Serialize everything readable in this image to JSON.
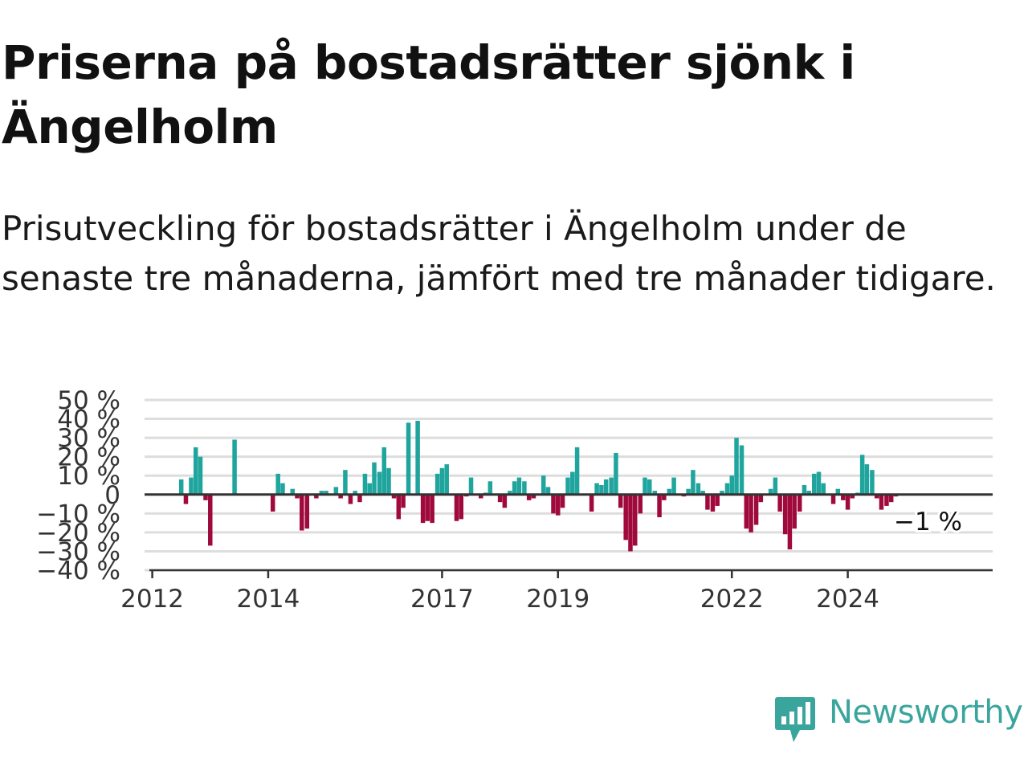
{
  "header": {
    "title": "Priserna på bostadsrätter sjönk i Ängelholm",
    "subtitle": "Prisutveckling för bostadsrätter i Ängelholm under de senaste tre månaderna, jämfört med tre månader tidigare."
  },
  "brand": {
    "name": "Newsworthy",
    "icon": "newsworthy-logo-icon",
    "color": "#3aa59c"
  },
  "chart_data": {
    "type": "bar",
    "title": "",
    "xlabel": "",
    "ylabel": "",
    "ylim": [
      -40,
      50
    ],
    "xlim": [
      2011.95,
      2026.5
    ],
    "grid": true,
    "legend": "none",
    "colors": {
      "positive": "#1fa59e",
      "negative": "#a0093c",
      "zero_line": "#333333",
      "grid": "#dddddd"
    },
    "y_ticks": [
      {
        "value": 50,
        "label": "50 %"
      },
      {
        "value": 40,
        "label": "40 %"
      },
      {
        "value": 30,
        "label": "30 %"
      },
      {
        "value": 20,
        "label": "20 %"
      },
      {
        "value": 10,
        "label": "10 %"
      },
      {
        "value": 0,
        "label": "0"
      },
      {
        "value": -10,
        "label": "−10 %"
      },
      {
        "value": -20,
        "label": "−20 %"
      },
      {
        "value": -30,
        "label": "−30 %"
      },
      {
        "value": -40,
        "label": "−40 %"
      }
    ],
    "x_ticks": [
      {
        "value": 2012,
        "label": "2012"
      },
      {
        "value": 2014,
        "label": "2014"
      },
      {
        "value": 2017,
        "label": "2017"
      },
      {
        "value": 2019,
        "label": "2019"
      },
      {
        "value": 2022,
        "label": "2022"
      },
      {
        "value": 2024,
        "label": "2024"
      }
    ],
    "annotation": {
      "text": "−1 %",
      "value": -1
    },
    "series": [
      {
        "points": [
          {
            "x": 2012.5,
            "y": 8
          },
          {
            "x": 2012.58,
            "y": -5
          },
          {
            "x": 2012.67,
            "y": 9
          },
          {
            "x": 2012.75,
            "y": 25
          },
          {
            "x": 2012.83,
            "y": 20
          },
          {
            "x": 2012.92,
            "y": -3
          },
          {
            "x": 2013.0,
            "y": -27
          },
          {
            "x": 2013.42,
            "y": 29
          },
          {
            "x": 2014.08,
            "y": -9
          },
          {
            "x": 2014.17,
            "y": 11
          },
          {
            "x": 2014.25,
            "y": 6
          },
          {
            "x": 2014.42,
            "y": 3
          },
          {
            "x": 2014.5,
            "y": -2
          },
          {
            "x": 2014.58,
            "y": -19
          },
          {
            "x": 2014.67,
            "y": -18
          },
          {
            "x": 2014.83,
            "y": -2
          },
          {
            "x": 2014.92,
            "y": 2
          },
          {
            "x": 2015.0,
            "y": 2
          },
          {
            "x": 2015.17,
            "y": 4
          },
          {
            "x": 2015.25,
            "y": -2
          },
          {
            "x": 2015.33,
            "y": 13
          },
          {
            "x": 2015.42,
            "y": -5
          },
          {
            "x": 2015.5,
            "y": 2
          },
          {
            "x": 2015.58,
            "y": -4
          },
          {
            "x": 2015.67,
            "y": 11
          },
          {
            "x": 2015.75,
            "y": 6
          },
          {
            "x": 2015.83,
            "y": 17
          },
          {
            "x": 2015.92,
            "y": 12
          },
          {
            "x": 2016.0,
            "y": 25
          },
          {
            "x": 2016.08,
            "y": 14
          },
          {
            "x": 2016.17,
            "y": -2
          },
          {
            "x": 2016.25,
            "y": -13
          },
          {
            "x": 2016.33,
            "y": -7
          },
          {
            "x": 2016.42,
            "y": 38
          },
          {
            "x": 2016.58,
            "y": 39
          },
          {
            "x": 2016.67,
            "y": -15
          },
          {
            "x": 2016.75,
            "y": -14
          },
          {
            "x": 2016.83,
            "y": -15
          },
          {
            "x": 2016.92,
            "y": 11
          },
          {
            "x": 2017.0,
            "y": 14
          },
          {
            "x": 2017.08,
            "y": 16
          },
          {
            "x": 2017.25,
            "y": -14
          },
          {
            "x": 2017.33,
            "y": -13
          },
          {
            "x": 2017.42,
            "y": -1
          },
          {
            "x": 2017.5,
            "y": 9
          },
          {
            "x": 2017.67,
            "y": -2
          },
          {
            "x": 2017.75,
            "y": 1
          },
          {
            "x": 2017.83,
            "y": 7
          },
          {
            "x": 2018.0,
            "y": -4
          },
          {
            "x": 2018.08,
            "y": -7
          },
          {
            "x": 2018.17,
            "y": 2
          },
          {
            "x": 2018.25,
            "y": 7
          },
          {
            "x": 2018.33,
            "y": 9
          },
          {
            "x": 2018.42,
            "y": 7
          },
          {
            "x": 2018.5,
            "y": -3
          },
          {
            "x": 2018.58,
            "y": -2
          },
          {
            "x": 2018.75,
            "y": 10
          },
          {
            "x": 2018.83,
            "y": 4
          },
          {
            "x": 2018.92,
            "y": -10
          },
          {
            "x": 2019.0,
            "y": -11
          },
          {
            "x": 2019.08,
            "y": -7
          },
          {
            "x": 2019.17,
            "y": 9
          },
          {
            "x": 2019.25,
            "y": 12
          },
          {
            "x": 2019.33,
            "y": 25
          },
          {
            "x": 2019.58,
            "y": -9
          },
          {
            "x": 2019.67,
            "y": 6
          },
          {
            "x": 2019.75,
            "y": 5
          },
          {
            "x": 2019.83,
            "y": 8
          },
          {
            "x": 2019.92,
            "y": 9
          },
          {
            "x": 2020.0,
            "y": 22
          },
          {
            "x": 2020.08,
            "y": -7
          },
          {
            "x": 2020.17,
            "y": -24
          },
          {
            "x": 2020.25,
            "y": -30
          },
          {
            "x": 2020.33,
            "y": -27
          },
          {
            "x": 2020.42,
            "y": -10
          },
          {
            "x": 2020.5,
            "y": 9
          },
          {
            "x": 2020.58,
            "y": 8
          },
          {
            "x": 2020.67,
            "y": 2
          },
          {
            "x": 2020.75,
            "y": -12
          },
          {
            "x": 2020.83,
            "y": -3
          },
          {
            "x": 2020.92,
            "y": 3
          },
          {
            "x": 2021.0,
            "y": 9
          },
          {
            "x": 2021.17,
            "y": -1
          },
          {
            "x": 2021.25,
            "y": 3
          },
          {
            "x": 2021.33,
            "y": 13
          },
          {
            "x": 2021.42,
            "y": 6
          },
          {
            "x": 2021.5,
            "y": 2
          },
          {
            "x": 2021.58,
            "y": -8
          },
          {
            "x": 2021.67,
            "y": -9
          },
          {
            "x": 2021.75,
            "y": -6
          },
          {
            "x": 2021.83,
            "y": 2
          },
          {
            "x": 2021.92,
            "y": 6
          },
          {
            "x": 2022.0,
            "y": 10
          },
          {
            "x": 2022.08,
            "y": 30
          },
          {
            "x": 2022.17,
            "y": 26
          },
          {
            "x": 2022.25,
            "y": -18
          },
          {
            "x": 2022.33,
            "y": -20
          },
          {
            "x": 2022.42,
            "y": -16
          },
          {
            "x": 2022.5,
            "y": -4
          },
          {
            "x": 2022.67,
            "y": 3
          },
          {
            "x": 2022.75,
            "y": 9
          },
          {
            "x": 2022.83,
            "y": -9
          },
          {
            "x": 2022.92,
            "y": -21
          },
          {
            "x": 2023.0,
            "y": -29
          },
          {
            "x": 2023.08,
            "y": -18
          },
          {
            "x": 2023.17,
            "y": -9
          },
          {
            "x": 2023.25,
            "y": 5
          },
          {
            "x": 2023.33,
            "y": 2
          },
          {
            "x": 2023.42,
            "y": 11
          },
          {
            "x": 2023.5,
            "y": 12
          },
          {
            "x": 2023.58,
            "y": 6
          },
          {
            "x": 2023.75,
            "y": -5
          },
          {
            "x": 2023.83,
            "y": 3
          },
          {
            "x": 2023.92,
            "y": -3
          },
          {
            "x": 2024.0,
            "y": -8
          },
          {
            "x": 2024.08,
            "y": -2
          },
          {
            "x": 2024.17,
            "y": 1
          },
          {
            "x": 2024.25,
            "y": 21
          },
          {
            "x": 2024.33,
            "y": 16
          },
          {
            "x": 2024.42,
            "y": 13
          },
          {
            "x": 2024.5,
            "y": -2
          },
          {
            "x": 2024.58,
            "y": -8
          },
          {
            "x": 2024.67,
            "y": -6
          },
          {
            "x": 2024.75,
            "y": -4
          },
          {
            "x": 2024.83,
            "y": -1
          }
        ]
      }
    ]
  }
}
